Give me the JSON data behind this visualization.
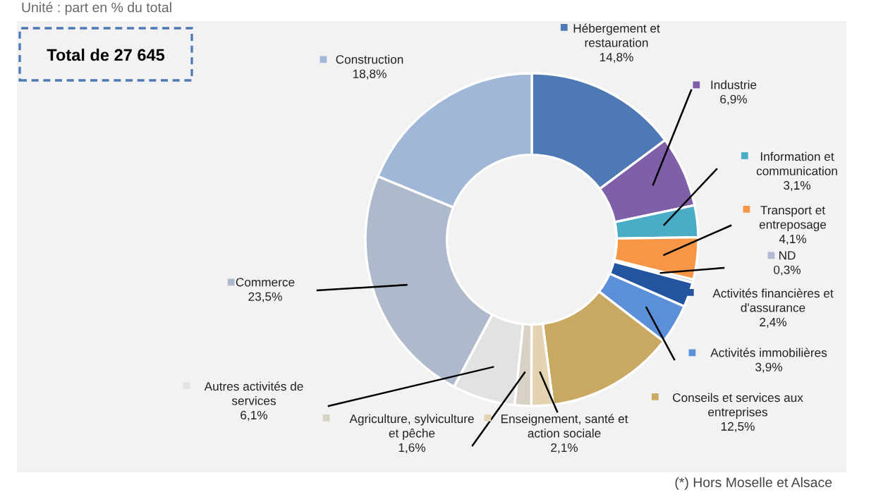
{
  "chart_data": {
    "type": "donut",
    "categories": [
      "Hébergement et\nrestauration",
      "Industrie",
      "Information et\ncommunication",
      "Transport et\nentreposage",
      "ND",
      "Activités financières et\nd'assurance",
      "Activités immobilières",
      "Conseils et services aux\nentreprises",
      "Enseignement, santé et\naction sociale",
      "Agriculture, sylviculture\net pêche",
      "Autres activités de\nservices",
      "Commerce",
      "Construction"
    ],
    "values": [
      14.8,
      6.9,
      3.1,
      4.1,
      0.3,
      2.4,
      3.9,
      12.5,
      2.1,
      1.6,
      6.1,
      23.5,
      18.8
    ],
    "value_labels": [
      "14,8%",
      "6,9%",
      "3,1%",
      "4,1%",
      "0,3%",
      "2,4%",
      "3,9%",
      "12,5%",
      "2,1%",
      "1,6%",
      "6,1%",
      "23,5%",
      "18,8%"
    ],
    "colors": [
      "#4f79b5",
      "#7e5fa8",
      "#4bacc6",
      "#f79646",
      "#b3b8d4",
      "#2354a0",
      "#5b8fd8",
      "#c9a862",
      "#e3d3b0",
      "#d8d2c4",
      "#e2e2e2",
      "#aebacb",
      "#a1b7d8"
    ],
    "annotations": [
      "Unité : part en % du total",
      "Total de 27 645",
      "(*) Hors Moselle et Alsace"
    ],
    "legend": "top left"
  }
}
